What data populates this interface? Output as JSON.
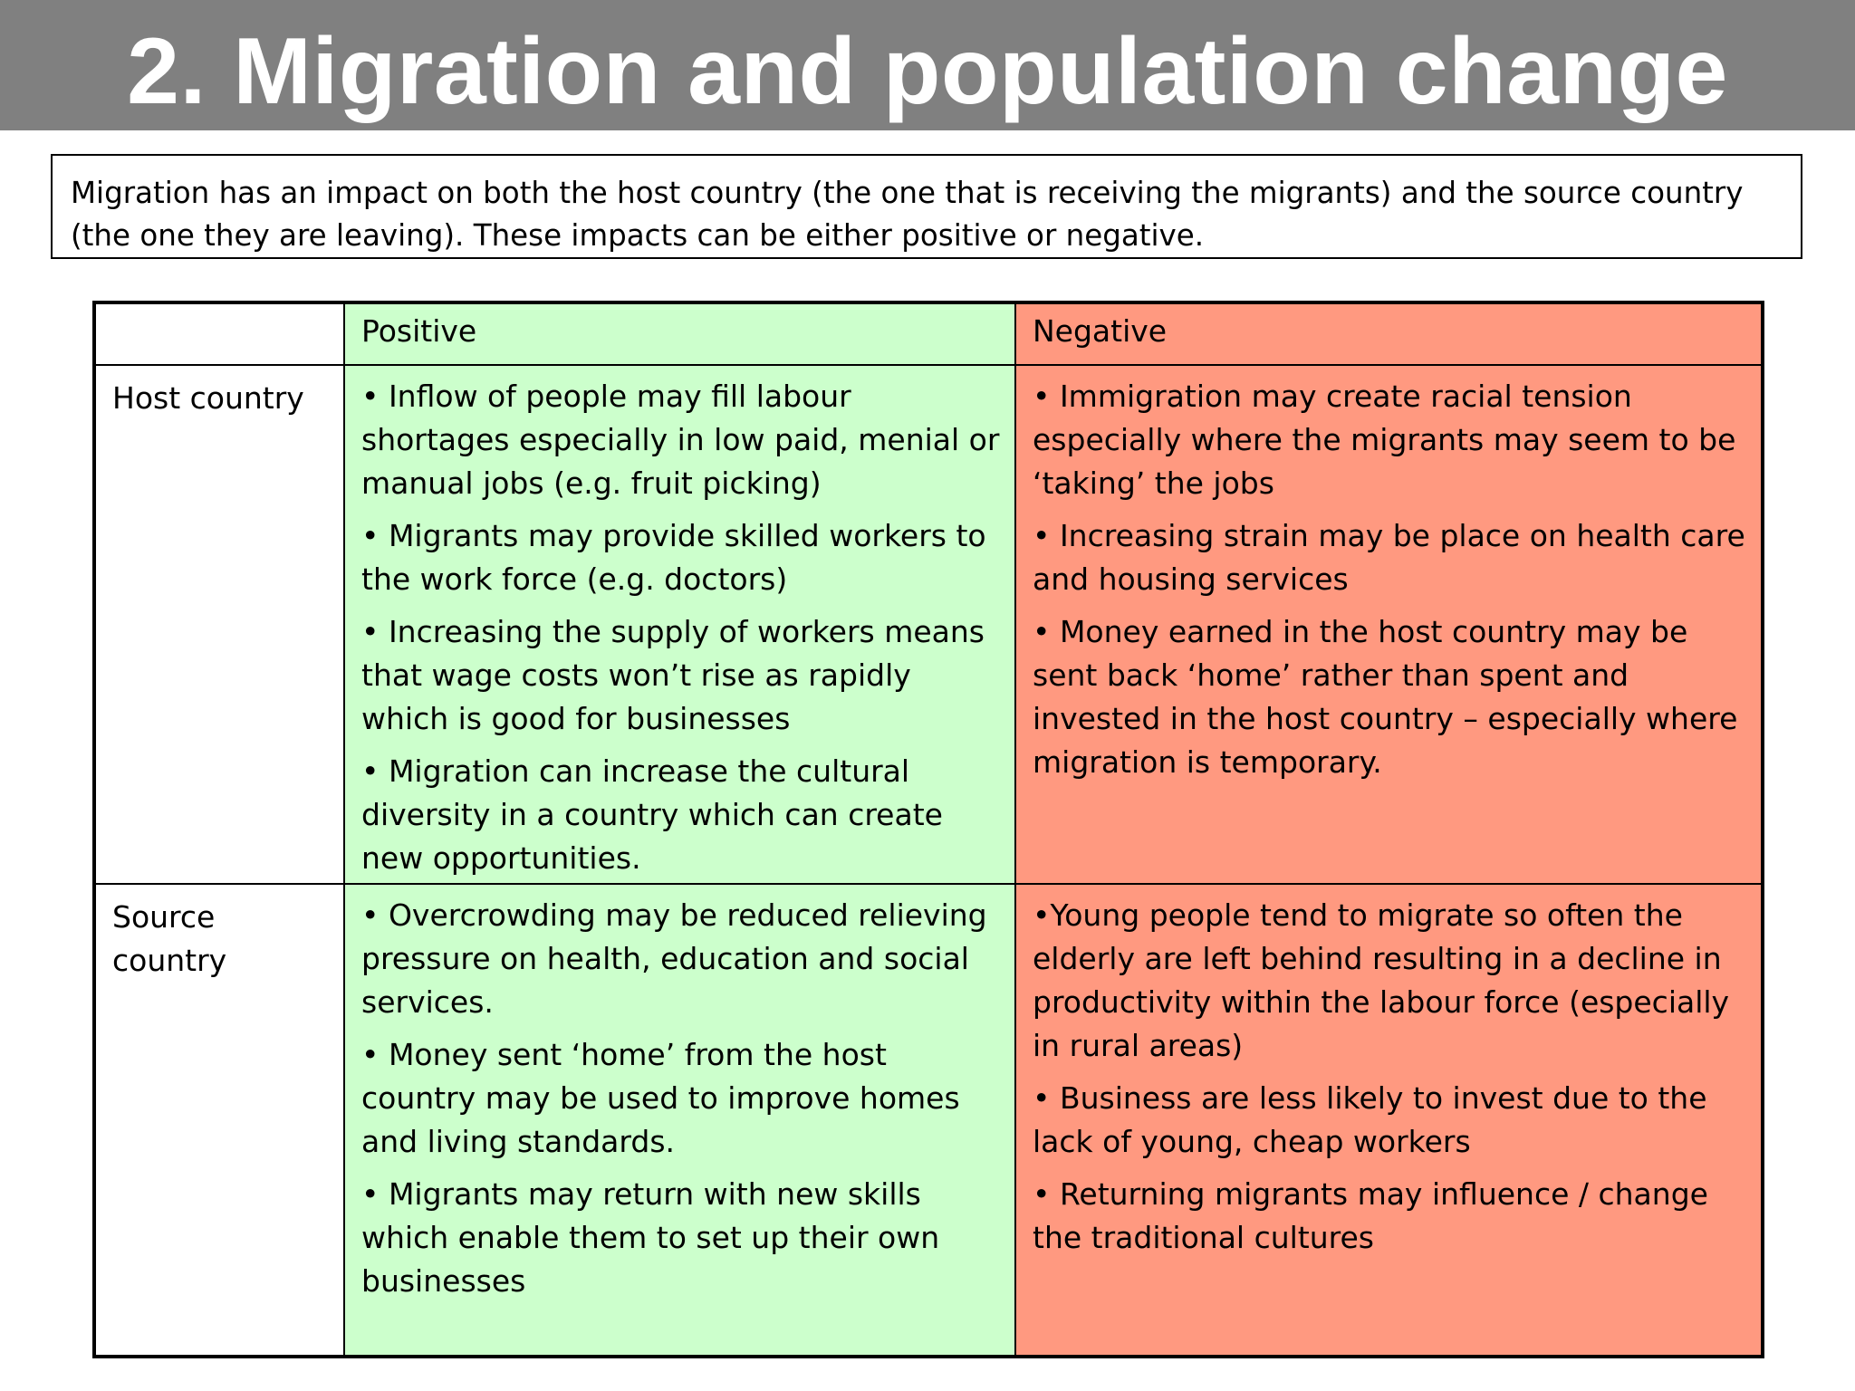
{
  "title": "2. Migration and population change",
  "intro": {
    "line1": "Migration has an impact on both the host country (the one that is receiving the migrants) and the source country",
    "line2": "(the one they are leaving). These impacts can be either positive or negative."
  },
  "colors": {
    "title_bar": "#808080",
    "positive": "#ccffcc",
    "negative": "#ff9980"
  },
  "table": {
    "corner": "",
    "positive_header": "Positive",
    "negative_header": "Negative",
    "rows": [
      {
        "label": "Host country",
        "positive": [
          "• Inflow of people may fill labour shortages especially in low paid, menial or manual jobs (e.g. fruit picking)",
          "• Migrants may provide skilled workers to the work force (e.g. doctors)",
          "• Increasing the supply of workers means that wage costs won’t rise as rapidly which is good for businesses",
          "• Migration can increase the cultural diversity in a country which can create new opportunities."
        ],
        "negative": [
          "• Immigration may create racial tension especially where the migrants may seem to be ‘taking’ the jobs",
          "• Increasing strain may be place on health care and housing services",
          "• Money earned in the host country may be sent back ‘home’ rather than spent and invested in the host country – especially where migration is temporary."
        ]
      },
      {
        "label": "Source country",
        "positive": [
          "• Overcrowding may be reduced relieving pressure on health, education and social services.",
          "• Money sent ‘home’ from the host country may be used to improve homes and living standards.",
          "• Migrants may return with new skills which enable them to set up their own businesses"
        ],
        "negative": [
          "•Young people tend to migrate so often the elderly are left behind resulting in a decline in productivity within the labour force (especially in rural areas)",
          "• Business are less likely to invest due to the lack of young, cheap workers",
          "• Returning migrants may influence / change the traditional cultures"
        ]
      }
    ]
  }
}
